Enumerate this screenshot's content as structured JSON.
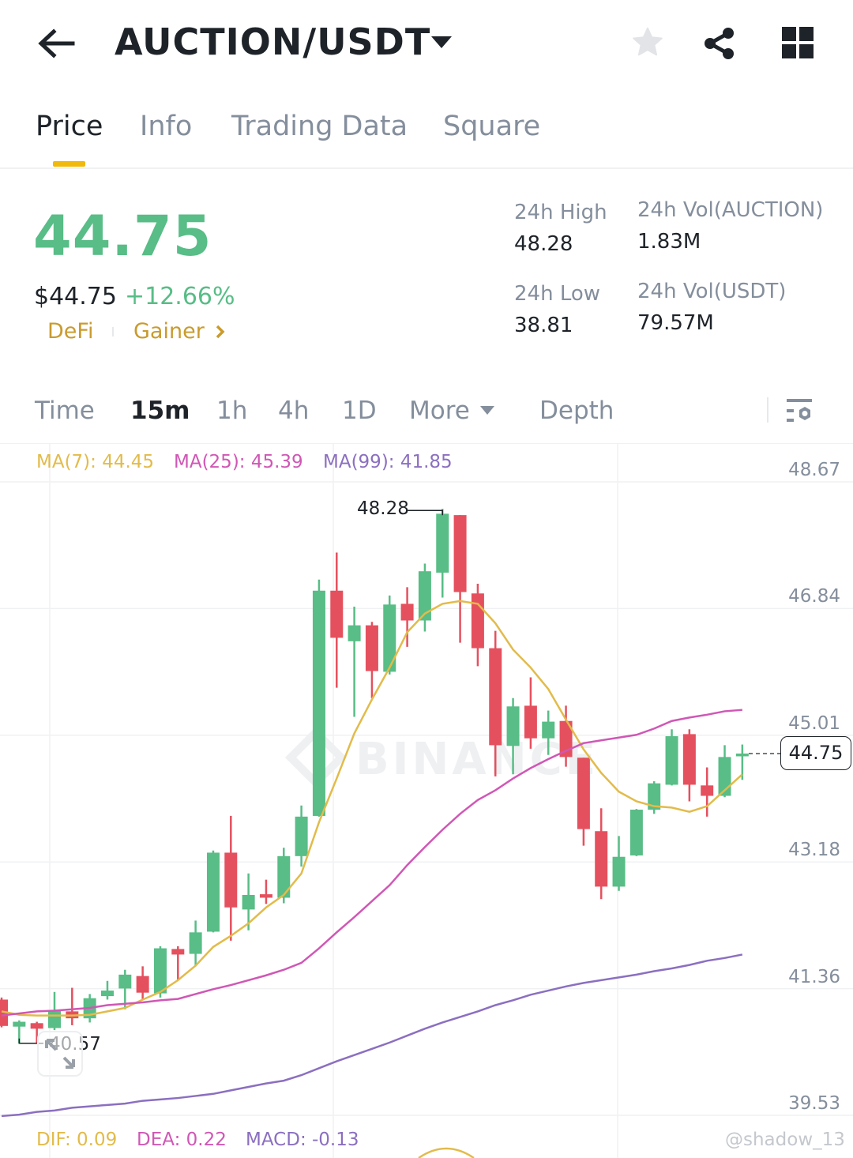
{
  "header": {
    "title": "AUCTION/USDT",
    "icons": {
      "back": "arrow-left-icon",
      "dropdown": "caret-down-icon",
      "favorite": "star-icon",
      "share": "share-icon",
      "menu": "grid-icon"
    }
  },
  "tabs": [
    {
      "label": "Price",
      "active": true
    },
    {
      "label": "Info"
    },
    {
      "label": "Trading Data"
    },
    {
      "label": "Square"
    }
  ],
  "ticker": {
    "last_price": "44.75",
    "usd_price": "$44.75",
    "change": "+12.66%",
    "tags": [
      "DeFi",
      "Gainer"
    ],
    "high_label": "24h High",
    "high": "48.28",
    "low_label": "24h Low",
    "low": "38.81",
    "vol_base_label": "24h Vol(AUCTION)",
    "vol_base": "1.83M",
    "vol_quote_label": "24h Vol(USDT)",
    "vol_quote": "79.57M"
  },
  "intervals": {
    "items": [
      "Time",
      "15m",
      "1h",
      "4h",
      "1D",
      "More",
      "Depth"
    ],
    "active": "15m",
    "settings_icon": "chart-settings-icon"
  },
  "indicators": {
    "ma7": "MA(7): 44.45",
    "ma25": "MA(25): 45.39",
    "ma99": "MA(99): 41.85",
    "dif": "DIF: 0.09",
    "dea": "DEA: 0.22",
    "macd": "MACD: -0.13"
  },
  "watermark": "BINANCE",
  "credit": "@shadow_13",
  "colors": {
    "up": "#58bd86",
    "down": "#e5505e",
    "ma7": "#e2bb4a",
    "ma25": "#d057b5",
    "ma99": "#8b6fc0",
    "accent": "#f0b90b",
    "tag": "#c99b2e"
  },
  "chart_data": {
    "type": "candlestick",
    "interval": "15m",
    "ylim": [
      39.53,
      48.67
    ],
    "yticks": [
      "48.67",
      "46.84",
      "45.01",
      "43.18",
      "41.36",
      "39.53"
    ],
    "grid": true,
    "high_marker": "48.28",
    "low_marker": "40.57",
    "last_price_label": "44.75",
    "candles": [
      [
        41.2,
        41.23,
        40.8,
        40.82
      ],
      [
        40.81,
        40.9,
        40.57,
        40.88
      ],
      [
        40.86,
        40.88,
        40.57,
        40.78
      ],
      [
        40.79,
        41.31,
        40.76,
        41.04
      ],
      [
        41.03,
        41.37,
        40.83,
        40.93
      ],
      [
        40.93,
        41.28,
        40.87,
        41.22
      ],
      [
        41.25,
        41.47,
        41.2,
        41.33
      ],
      [
        41.36,
        41.63,
        41.06,
        41.56
      ],
      [
        41.54,
        41.68,
        41.21,
        41.3
      ],
      [
        41.29,
        41.97,
        41.23,
        41.94
      ],
      [
        41.93,
        41.97,
        41.49,
        41.85
      ],
      [
        41.86,
        42.34,
        41.68,
        42.17
      ],
      [
        42.18,
        43.35,
        42.17,
        43.32
      ],
      [
        43.32,
        43.85,
        42.05,
        42.53
      ],
      [
        42.5,
        43.02,
        42.2,
        42.71
      ],
      [
        42.72,
        42.93,
        42.58,
        42.67
      ],
      [
        42.67,
        43.39,
        42.59,
        43.27
      ],
      [
        43.27,
        44.0,
        43.12,
        43.84
      ],
      [
        43.85,
        47.26,
        43.84,
        47.1
      ],
      [
        47.1,
        47.65,
        45.7,
        46.42
      ],
      [
        46.37,
        46.87,
        45.28,
        46.6
      ],
      [
        46.6,
        46.65,
        45.55,
        45.94
      ],
      [
        45.93,
        47.03,
        45.89,
        46.9
      ],
      [
        46.91,
        47.15,
        46.29,
        46.67
      ],
      [
        46.67,
        47.49,
        46.51,
        47.38
      ],
      [
        47.36,
        48.28,
        47.0,
        48.21
      ],
      [
        48.19,
        48.19,
        46.35,
        47.08
      ],
      [
        47.06,
        47.2,
        46.01,
        46.27
      ],
      [
        46.27,
        46.52,
        44.42,
        44.87
      ],
      [
        44.86,
        45.55,
        44.45,
        45.43
      ],
      [
        45.44,
        45.85,
        44.82,
        44.97
      ],
      [
        44.97,
        45.37,
        44.73,
        45.21
      ],
      [
        45.22,
        45.44,
        44.56,
        44.7
      ],
      [
        44.69,
        44.69,
        43.42,
        43.66
      ],
      [
        43.63,
        43.96,
        42.65,
        42.83
      ],
      [
        42.83,
        43.56,
        42.77,
        43.26
      ],
      [
        43.28,
        43.95,
        43.27,
        43.94
      ],
      [
        43.94,
        44.35,
        43.88,
        44.32
      ],
      [
        44.3,
        45.1,
        44.29,
        45.0
      ],
      [
        45.03,
        45.1,
        44.06,
        44.3
      ],
      [
        44.29,
        44.55,
        43.84,
        44.14
      ],
      [
        44.14,
        44.87,
        44.12,
        44.7
      ],
      [
        44.71,
        44.88,
        44.37,
        44.75
      ]
    ],
    "candle_format": [
      "open",
      "high",
      "low",
      "close"
    ],
    "series": [
      {
        "name": "MA(7)",
        "values": [
          41.03,
          40.98,
          40.97,
          40.97,
          40.97,
          40.98,
          41.03,
          41.08,
          41.2,
          41.31,
          41.48,
          41.69,
          41.96,
          42.12,
          42.3,
          42.53,
          42.71,
          43.02,
          43.76,
          44.39,
          45.04,
          45.53,
          45.99,
          46.5,
          46.77,
          46.91,
          46.95,
          46.91,
          46.63,
          46.25,
          45.99,
          45.68,
          45.24,
          44.81,
          44.47,
          44.2,
          44.06,
          43.99,
          43.97,
          43.91,
          43.99,
          44.22,
          44.45
        ]
      },
      {
        "name": "MA(25)",
        "values": [
          40.97,
          41.0,
          41.03,
          41.04,
          41.06,
          41.08,
          41.12,
          41.14,
          41.16,
          41.19,
          41.21,
          41.28,
          41.35,
          41.41,
          41.48,
          41.55,
          41.63,
          41.73,
          41.94,
          42.17,
          42.39,
          42.62,
          42.85,
          43.14,
          43.4,
          43.65,
          43.88,
          44.08,
          44.22,
          44.39,
          44.54,
          44.67,
          44.79,
          44.9,
          44.94,
          44.98,
          45.02,
          45.11,
          45.22,
          45.27,
          45.31,
          45.36,
          45.38
        ]
      },
      {
        "name": "MA(99)",
        "values": [
          39.52,
          39.54,
          39.58,
          39.6,
          39.64,
          39.66,
          39.68,
          39.7,
          39.74,
          39.76,
          39.78,
          39.81,
          39.84,
          39.89,
          39.94,
          39.99,
          40.03,
          40.11,
          40.21,
          40.31,
          40.4,
          40.49,
          40.58,
          40.68,
          40.78,
          40.87,
          40.95,
          41.03,
          41.12,
          41.19,
          41.27,
          41.33,
          41.39,
          41.44,
          41.48,
          41.52,
          41.56,
          41.61,
          41.65,
          41.7,
          41.76,
          41.8,
          41.85
        ]
      }
    ]
  }
}
